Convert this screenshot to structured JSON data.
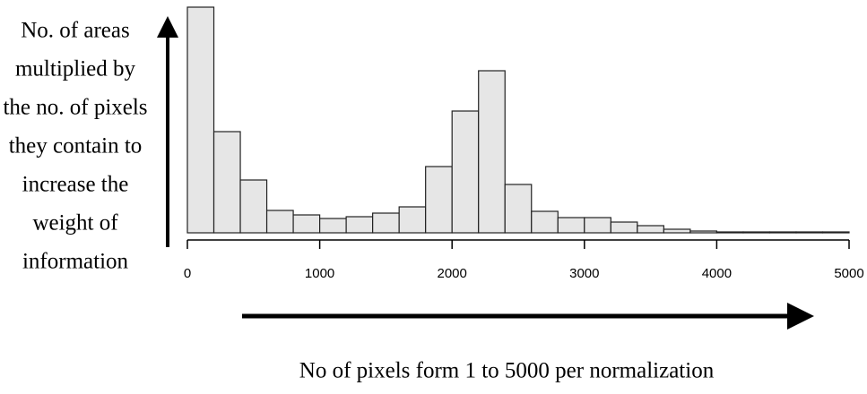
{
  "chart_data": {
    "type": "histogram",
    "ylabel": [
      "No. of areas",
      "multiplied by",
      "the no. of pixels",
      "they contain to",
      "increase the",
      "weight of",
      "information"
    ],
    "xlabel": "No of pixels form 1 to 5000 per normalization",
    "bins": [
      0,
      200,
      400,
      600,
      800,
      1000,
      1200,
      1400,
      1600,
      1800,
      2000,
      2200,
      2400,
      2600,
      2800,
      3000,
      3200,
      3400,
      3600,
      3800,
      4000,
      4200,
      4400,
      4600,
      4800,
      5000
    ],
    "values": [
      252,
      113,
      59,
      25,
      20,
      16,
      18,
      22,
      29,
      74,
      136,
      181,
      54,
      24,
      17,
      17,
      12,
      8,
      4,
      2,
      1,
      1,
      1,
      1,
      1
    ],
    "color": "#e6e6e6",
    "xlim": [
      0,
      5000
    ],
    "xticks": [
      0,
      1000,
      2000,
      3000,
      4000,
      5000
    ]
  }
}
